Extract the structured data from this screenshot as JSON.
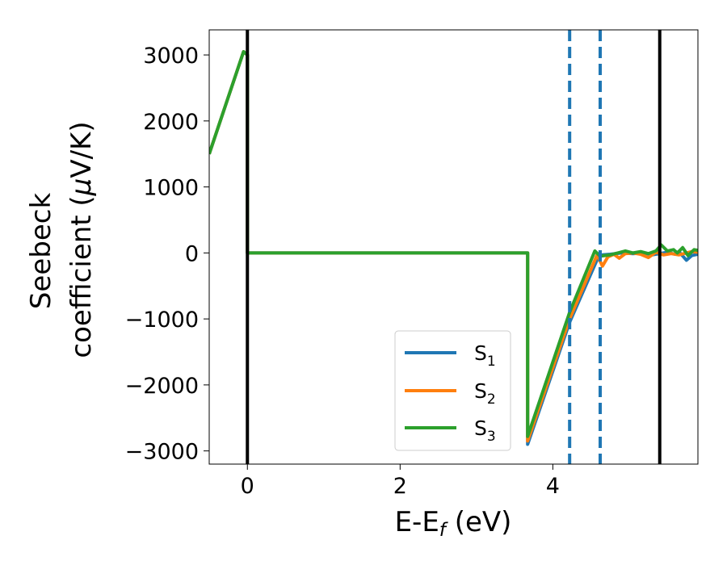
{
  "chart_data": {
    "type": "line",
    "xlabel": "E-E",
    "xlabel_sub": "f",
    "xlabel_unit": " (eV)",
    "ylabel_line1": "Seebeck",
    "ylabel_line2": "coefficient  (",
    "ylabel_mu": "μ",
    "ylabel_line2_end": "V/K)",
    "xlim": [
      -0.5,
      5.9
    ],
    "ylim": [
      -3200,
      3380
    ],
    "xticks": [
      0,
      2,
      4
    ],
    "yticks": [
      -3000,
      -2000,
      -1000,
      0,
      1000,
      2000,
      3000
    ],
    "xtick_labels": [
      "0",
      "2",
      "4"
    ],
    "ytick_labels": [
      "−3000",
      "−2000",
      "−1000",
      "0",
      "1000",
      "2000",
      "3000"
    ],
    "legend_position": "lower-center-right",
    "vlines_solid": [
      0.0,
      5.4
    ],
    "vlines_dashed": [
      4.22,
      4.62
    ],
    "vline_solid_color": "#000000",
    "vline_dashed_color": "#1f77b4",
    "series": [
      {
        "name": "S",
        "sub": "1",
        "color": "#1f77b4",
        "points": [
          [
            -0.5,
            1500
          ],
          [
            -0.05,
            3050
          ],
          [
            0.0,
            3000
          ],
          [
            0.0,
            0
          ],
          [
            3.67,
            0
          ],
          [
            3.67,
            -2900
          ],
          [
            4.22,
            -1050
          ],
          [
            4.6,
            -50
          ],
          [
            4.65,
            -30
          ],
          [
            4.75,
            -20
          ],
          [
            4.9,
            0
          ],
          [
            5.05,
            -10
          ],
          [
            5.2,
            0
          ],
          [
            5.3,
            -30
          ],
          [
            5.4,
            -10
          ],
          [
            5.5,
            10
          ],
          [
            5.6,
            -20
          ],
          [
            5.65,
            20
          ],
          [
            5.75,
            -110
          ],
          [
            5.82,
            -40
          ],
          [
            5.9,
            -20
          ]
        ]
      },
      {
        "name": "S",
        "sub": "2",
        "color": "#ff7f0e",
        "points": [
          [
            -0.5,
            1500
          ],
          [
            -0.05,
            3050
          ],
          [
            0.0,
            3000
          ],
          [
            0.0,
            0
          ],
          [
            3.67,
            0
          ],
          [
            3.67,
            -2850
          ],
          [
            4.22,
            -1000
          ],
          [
            4.58,
            -30
          ],
          [
            4.65,
            -200
          ],
          [
            4.72,
            -60
          ],
          [
            4.8,
            -20
          ],
          [
            4.87,
            -80
          ],
          [
            4.95,
            -10
          ],
          [
            5.05,
            0
          ],
          [
            5.15,
            -20
          ],
          [
            5.25,
            -70
          ],
          [
            5.35,
            10
          ],
          [
            5.45,
            -30
          ],
          [
            5.55,
            -10
          ],
          [
            5.65,
            -30
          ],
          [
            5.75,
            0
          ],
          [
            5.82,
            20
          ],
          [
            5.9,
            10
          ]
        ]
      },
      {
        "name": "S",
        "sub": "3",
        "color": "#2ca02c",
        "points": [
          [
            -0.5,
            1500
          ],
          [
            -0.05,
            3050
          ],
          [
            0.0,
            3000
          ],
          [
            0.0,
            0
          ],
          [
            3.67,
            0
          ],
          [
            3.67,
            -2780
          ],
          [
            4.22,
            -900
          ],
          [
            4.55,
            30
          ],
          [
            4.62,
            -50
          ],
          [
            4.75,
            -30
          ],
          [
            4.85,
            0
          ],
          [
            4.95,
            30
          ],
          [
            5.05,
            0
          ],
          [
            5.15,
            20
          ],
          [
            5.25,
            -10
          ],
          [
            5.35,
            30
          ],
          [
            5.42,
            120
          ],
          [
            5.5,
            30
          ],
          [
            5.58,
            50
          ],
          [
            5.63,
            0
          ],
          [
            5.7,
            80
          ],
          [
            5.77,
            -40
          ],
          [
            5.85,
            50
          ],
          [
            5.9,
            40
          ]
        ]
      }
    ]
  }
}
